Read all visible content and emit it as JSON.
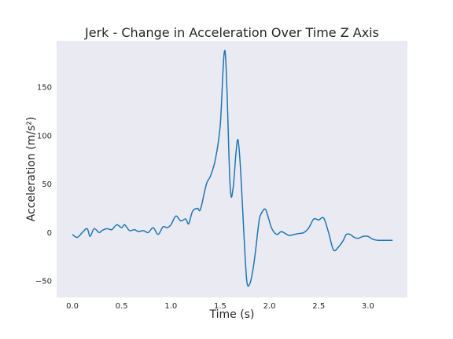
{
  "chart_data": {
    "type": "line",
    "title": "Jerk - Change in Acceleration Over Time Z Axis",
    "xlabel": "Time (s)",
    "ylabel": "Acceleration (m/s²)",
    "xlim": [
      -0.16,
      3.4
    ],
    "ylim": [
      -67,
      198
    ],
    "x_ticks": [
      0.0,
      0.5,
      1.0,
      1.5,
      2.0,
      2.5,
      3.0
    ],
    "x_tick_labels": [
      "0.0",
      "0.5",
      "1.0",
      "1.5",
      "2.0",
      "2.5",
      "3.0"
    ],
    "y_ticks": [
      -50,
      0,
      50,
      100,
      150
    ],
    "y_tick_labels": [
      "−50",
      "0",
      "50",
      "100",
      "150"
    ],
    "grid": false,
    "background": "#eaeaf2",
    "series": [
      {
        "color": "#1f77b4",
        "x": [
          0.0,
          0.05,
          0.1,
          0.15,
          0.18,
          0.22,
          0.27,
          0.3,
          0.35,
          0.4,
          0.45,
          0.5,
          0.53,
          0.58,
          0.63,
          0.67,
          0.72,
          0.77,
          0.82,
          0.87,
          0.92,
          0.96,
          1.0,
          1.05,
          1.1,
          1.15,
          1.18,
          1.22,
          1.27,
          1.3,
          1.36,
          1.4,
          1.45,
          1.5,
          1.55,
          1.6,
          1.63,
          1.66,
          1.68,
          1.7,
          1.72,
          1.74,
          1.77,
          1.8,
          1.83,
          1.86,
          1.88,
          1.9,
          1.93,
          1.96,
          1.99,
          2.02,
          2.05,
          2.08,
          2.12,
          2.16,
          2.2,
          2.25,
          2.3,
          2.35,
          2.4,
          2.45,
          2.5,
          2.55,
          2.6,
          2.65,
          2.7,
          2.75,
          2.78,
          2.82,
          2.86,
          2.9,
          2.95,
          3.0,
          3.05,
          3.1,
          3.15,
          3.2,
          3.25
        ],
        "y": [
          -2,
          -5,
          0,
          4,
          -4,
          4,
          0,
          2,
          4,
          3,
          8,
          5,
          8,
          2,
          3,
          1,
          2,
          0,
          5,
          -2,
          6,
          5,
          8,
          17,
          12,
          14,
          9,
          22,
          25,
          24,
          50,
          58,
          75,
          110,
          187,
          50,
          45,
          82,
          96,
          76,
          40,
          0,
          -50,
          -53,
          -40,
          -18,
          0,
          15,
          22,
          24,
          15,
          5,
          0,
          -2,
          1,
          -1,
          -3,
          -2,
          -1,
          0,
          5,
          14,
          13,
          15,
          0,
          -18,
          -15,
          -8,
          -2,
          -2,
          -5,
          -6,
          -4,
          -4,
          -7,
          -8,
          -8,
          -8,
          -8
        ]
      }
    ]
  }
}
